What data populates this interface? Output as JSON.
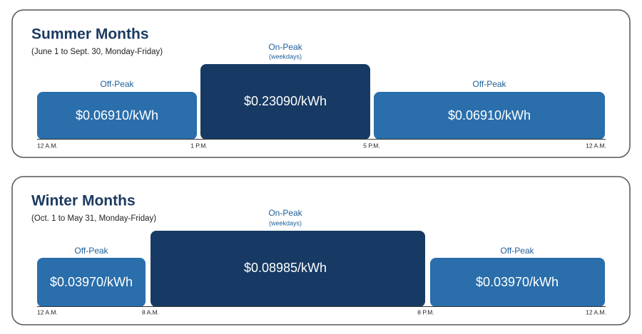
{
  "panels": [
    {
      "title": "Summer Months",
      "subtitle": "(June 1 to Sept. 30, Monday-Friday)",
      "periods": [
        {
          "label": "Off-Peak",
          "rate": "$0.06910/kWh"
        },
        {
          "label": "On-Peak",
          "note": "(weekdays)",
          "rate": "$0.23090/kWh"
        },
        {
          "label": "Off-Peak",
          "rate": "$0.06910/kWh"
        }
      ],
      "times": [
        "12 A.M.",
        "1 P.M.",
        "5 P.M.",
        "12 A.M."
      ]
    },
    {
      "title": "Winter Months",
      "subtitle": "(Oct. 1 to May 31, Monday-Friday)",
      "periods": [
        {
          "label": "Off-Peak",
          "rate": "$0.03970/kWh"
        },
        {
          "label": "On-Peak",
          "note": "(weekdays)",
          "rate": "$0.08985/kWh"
        },
        {
          "label": "Off-Peak",
          "rate": "$0.03970/kWh"
        }
      ],
      "times": [
        "12 A.M.",
        "8 A.M.",
        "8 P.M.",
        "12 A.M."
      ]
    }
  ]
}
